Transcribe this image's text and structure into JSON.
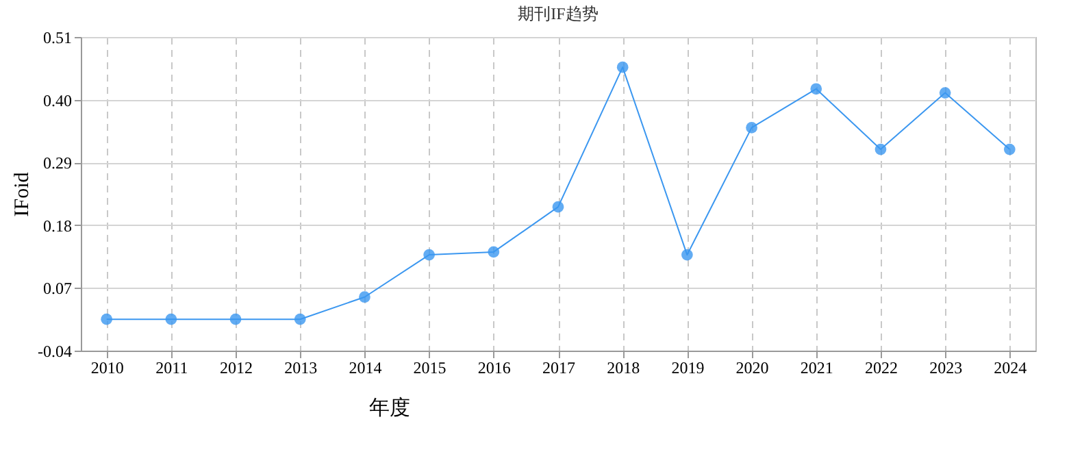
{
  "chart_data": {
    "type": "line",
    "title": "期刊IF趋势",
    "xlabel": "年度",
    "ylabel": "IFoid",
    "categories": [
      "2010",
      "2011",
      "2012",
      "2013",
      "2014",
      "2015",
      "2016",
      "2017",
      "2018",
      "2019",
      "2020",
      "2021",
      "2022",
      "2023",
      "2024"
    ],
    "series": [
      {
        "color": "#3b97f0",
        "values": [
          0.015,
          0.015,
          0.015,
          0.015,
          0.054,
          0.128,
          0.133,
          0.212,
          0.457,
          0.128,
          0.351,
          0.419,
          0.313,
          0.412,
          0.313
        ]
      }
    ],
    "ylim": [
      -0.04,
      0.51
    ],
    "yticks": [
      -0.04,
      0.07,
      0.18,
      0.29,
      {
        "value": 0.4,
        "label": "0.40"
      },
      0.51
    ],
    "grid": true,
    "marker": "circle",
    "line_style": "solid"
  }
}
